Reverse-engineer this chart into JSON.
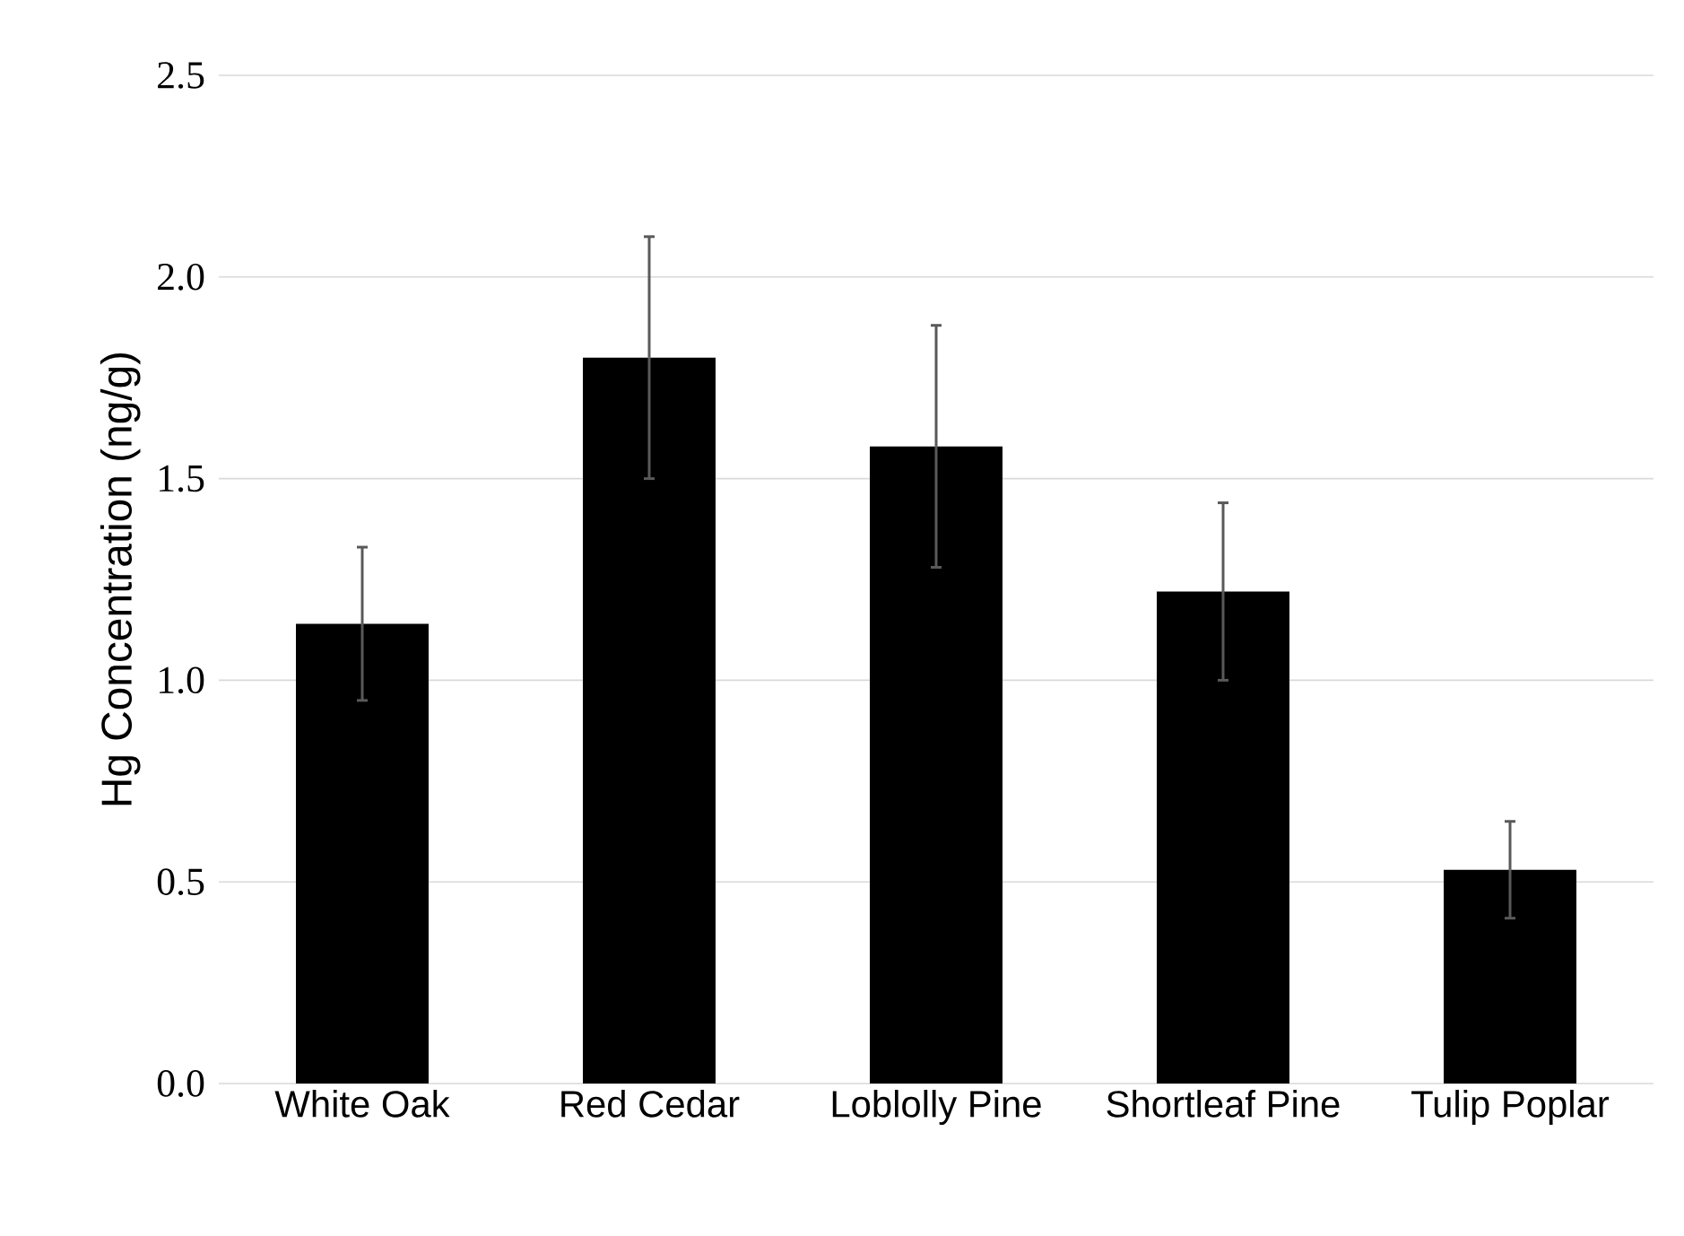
{
  "chart_data": {
    "type": "bar",
    "ylabel": "Hg Concentration (ng/g)",
    "categories": [
      "White Oak",
      "Red Cedar",
      "Loblolly Pine",
      "Shortleaf Pine",
      "Tulip Poplar"
    ],
    "values": [
      1.14,
      1.8,
      1.58,
      1.22,
      0.53
    ],
    "errors": [
      0.19,
      0.3,
      0.3,
      0.22,
      0.12
    ],
    "color": "#000000",
    "ylim": [
      0,
      2.5
    ],
    "yticks": [
      {
        "value": 0,
        "label": "0.0"
      },
      {
        "value": 0.5,
        "label": "0.5"
      },
      {
        "value": 1,
        "label": "1.0"
      },
      {
        "value": 1.5,
        "label": "1.5"
      },
      {
        "value": 2,
        "label": "2.0"
      },
      {
        "value": 2.5,
        "label": "2.5"
      }
    ],
    "grid": "y"
  }
}
